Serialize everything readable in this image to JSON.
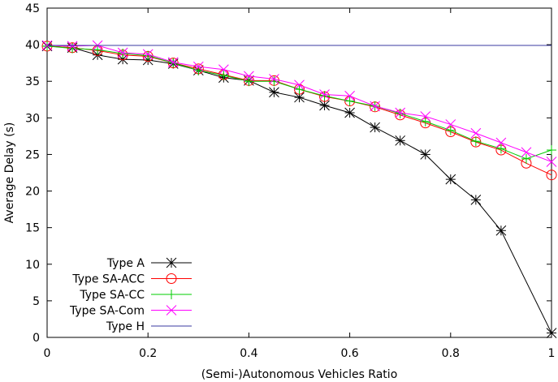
{
  "chart_data": {
    "type": "line",
    "title": "",
    "xlabel": "(Semi-)Autonomous Vehicles Ratio",
    "ylabel": "Average Delay (s)",
    "xlim": [
      0,
      1
    ],
    "ylim": [
      0,
      45
    ],
    "xticks": [
      "0",
      "0.2",
      "0.4",
      "0.6",
      "0.8",
      "1"
    ],
    "yticks": [
      "0",
      "5",
      "10",
      "15",
      "20",
      "25",
      "30",
      "35",
      "40",
      "45"
    ],
    "grid": false,
    "legend_position": "bottom-left",
    "x": [
      0,
      0.05,
      0.1,
      0.15,
      0.2,
      0.25,
      0.3,
      0.35,
      0.4,
      0.45,
      0.5,
      0.55,
      0.6,
      0.65,
      0.7,
      0.75,
      0.8,
      0.85,
      0.9,
      0.95,
      1.0
    ],
    "series": [
      {
        "name": "Type A",
        "color": "#000000",
        "marker": "star",
        "values": [
          39.8,
          39.6,
          38.6,
          38.0,
          37.9,
          37.4,
          36.5,
          35.5,
          35.1,
          33.5,
          32.8,
          31.7,
          30.7,
          28.7,
          26.9,
          25.0,
          21.6,
          18.8,
          14.6,
          null,
          0.6
        ]
      },
      {
        "name": "Type SA-ACC",
        "color": "#ff0000",
        "marker": "circle",
        "values": [
          39.8,
          39.6,
          39.2,
          38.6,
          38.4,
          37.5,
          36.7,
          35.9,
          35.1,
          35.1,
          33.9,
          32.9,
          32.3,
          31.5,
          30.4,
          29.3,
          28.1,
          26.7,
          25.6,
          23.8,
          22.2
        ]
      },
      {
        "name": "Type SA-CC",
        "color": "#00cc00",
        "marker": "plus",
        "values": [
          39.8,
          39.5,
          39.3,
          38.8,
          38.5,
          37.5,
          36.5,
          35.8,
          35.0,
          35.0,
          33.9,
          33.0,
          32.3,
          31.6,
          30.6,
          29.5,
          28.3,
          26.8,
          25.8,
          24.4,
          25.6
        ]
      },
      {
        "name": "Type SA-Com",
        "color": "#ff00ff",
        "marker": "x",
        "values": [
          39.9,
          39.8,
          39.9,
          38.9,
          38.7,
          37.6,
          37.0,
          36.6,
          35.7,
          35.3,
          34.5,
          33.2,
          33.0,
          31.6,
          30.7,
          30.2,
          29.1,
          27.9,
          26.6,
          25.3,
          24.0
        ]
      },
      {
        "name": "Type H",
        "color": "#3a3aa0",
        "marker": "none",
        "values": [
          39.9,
          39.9,
          39.9,
          39.9,
          39.9,
          39.9,
          39.9,
          39.9,
          39.9,
          39.9,
          39.9,
          39.9,
          39.9,
          39.9,
          39.9,
          39.9,
          39.9,
          39.9,
          39.9,
          39.9,
          39.9
        ]
      }
    ]
  }
}
